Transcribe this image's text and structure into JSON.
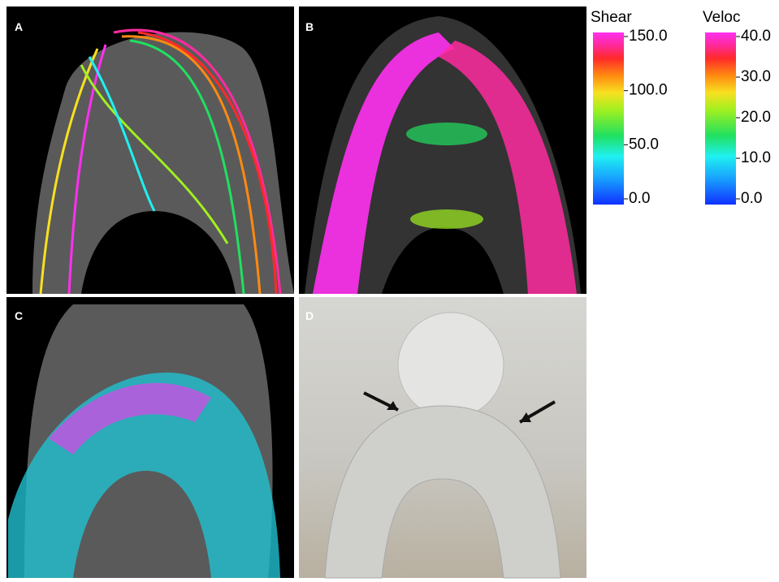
{
  "panels": [
    {
      "label": "A"
    },
    {
      "label": "B"
    },
    {
      "label": "C"
    },
    {
      "label": "D"
    }
  ],
  "colorbars": [
    {
      "title": "Shear",
      "lim": [
        0,
        150
      ],
      "ticks": [
        {
          "value": 150,
          "label": "150.0"
        },
        {
          "value": 100,
          "label": "100.0"
        },
        {
          "value": 50,
          "label": "50.0"
        },
        {
          "value": 0,
          "label": "0.0"
        }
      ]
    },
    {
      "title": "Veloc",
      "lim": [
        0,
        40
      ],
      "ticks": [
        {
          "value": 40,
          "label": "40.0"
        },
        {
          "value": 30,
          "label": "30.0"
        },
        {
          "value": 20,
          "label": "20.0"
        },
        {
          "value": 10,
          "label": "10.0"
        },
        {
          "value": 0,
          "label": "0.0"
        }
      ]
    }
  ]
}
